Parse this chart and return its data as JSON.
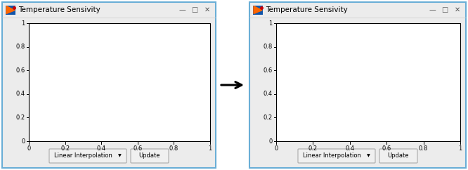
{
  "title": "Temperature Sensivity",
  "window_bg": "#ececec",
  "window_border_color": "#6aaed6",
  "plot_bg": "#ffffff",
  "plot_border_color": "#000000",
  "text_color": "#000000",
  "button_text_color": "#000000",
  "button_bg": "#f0f0f0",
  "button_border": "#aaaaaa",
  "arrow_color": "#000000",
  "xticks": [
    0,
    0.2,
    0.4,
    0.6,
    0.8,
    1
  ],
  "yticks": [
    0,
    0.2,
    0.4,
    0.6,
    0.8,
    1
  ],
  "button1_text": "Linear Interpolation",
  "button2_text": "Update",
  "icon_bg_color": "#1155aa",
  "icon_tri_color": "#ff6600",
  "icon_red_color": "#cc0000",
  "ctrl_color": "#555555"
}
